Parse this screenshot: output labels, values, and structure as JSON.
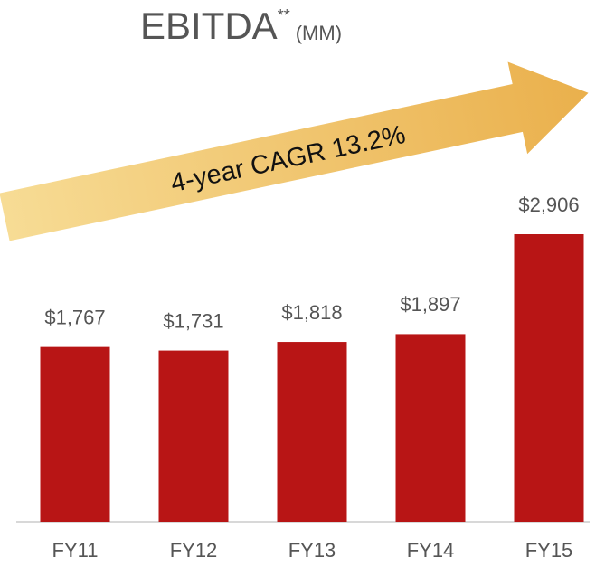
{
  "chart_data": {
    "type": "bar",
    "title": "EBITDA",
    "title_superscript": "**",
    "title_unit": "(MM)",
    "annotation": "4-year CAGR 13.2%",
    "categories": [
      "FY11",
      "FY12",
      "FY13",
      "FY14",
      "FY15"
    ],
    "values": [
      1767,
      1731,
      1818,
      1897,
      2906
    ],
    "value_labels": [
      "$1,767",
      "$1,731",
      "$1,818",
      "$1,897",
      "$2,906"
    ],
    "color": "#b81515"
  }
}
